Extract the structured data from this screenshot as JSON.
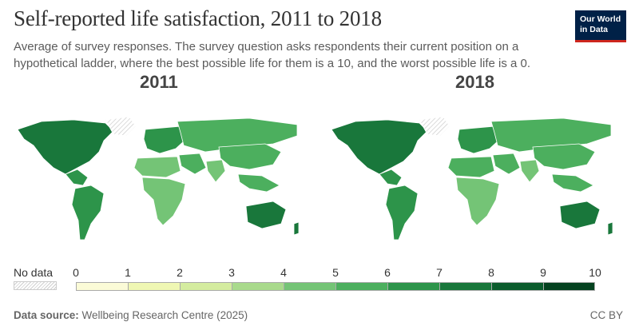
{
  "header": {
    "title": "Self-reported life satisfaction, 2011 to 2018",
    "subtitle": "Average of survey responses. The survey question asks respondents their current position on a hypothetical ladder, where the best possible life for them is a 10, and the worst possible life is a 0.",
    "logo_line1": "Our World",
    "logo_line2": "in Data"
  },
  "maps": [
    {
      "year_label": "2011",
      "regions": {
        "north_america": 7.2,
        "greenland": null,
        "central_america": 6.5,
        "south_america": 6.4,
        "europe": 6.5,
        "russia_central_asia": 5.4,
        "middle_east": 5.2,
        "north_africa": 4.8,
        "sub_saharan_africa": 4.3,
        "south_asia": 4.8,
        "china_east_asia": 5.3,
        "southeast_asia": 5.3,
        "australia_nz": 7.3
      }
    },
    {
      "year_label": "2018",
      "regions": {
        "north_america": 7.0,
        "greenland": null,
        "central_america": 6.3,
        "south_america": 6.1,
        "europe": 6.4,
        "russia_central_asia": 5.7,
        "middle_east": 5.4,
        "north_africa": 5.0,
        "sub_saharan_africa": 4.5,
        "south_asia": 4.2,
        "china_east_asia": 5.4,
        "southeast_asia": 5.6,
        "australia_nz": 7.2
      }
    }
  ],
  "legend": {
    "no_data_label": "No data",
    "ticks": [
      "0",
      "1",
      "2",
      "3",
      "4",
      "5",
      "6",
      "7",
      "8",
      "9",
      "10"
    ],
    "colors": [
      "#fbfbd7",
      "#eff7b3",
      "#d4ec9f",
      "#a9da8c",
      "#74c476",
      "#4caf5e",
      "#2d944a",
      "#19773b",
      "#0b5c2d",
      "#054220"
    ]
  },
  "footer": {
    "source_label": "Data source:",
    "source_text": "Wellbeing Research Centre (2025)",
    "license": "CC BY"
  }
}
